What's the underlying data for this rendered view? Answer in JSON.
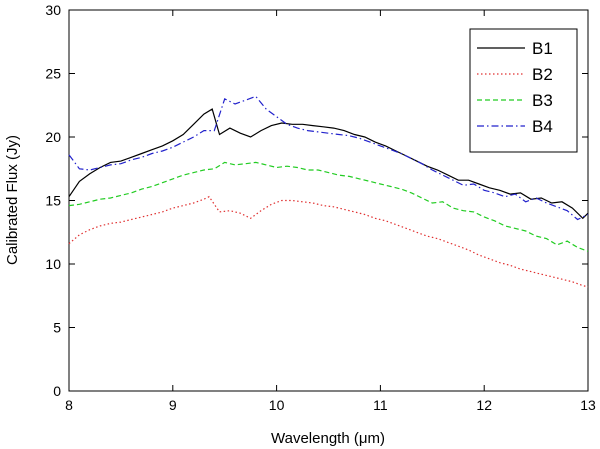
{
  "chart_data": {
    "type": "line",
    "title": "",
    "xlabel": "Wavelength (μm)",
    "ylabel": "Calibrated Flux (Jy)",
    "xlim": [
      8,
      13
    ],
    "ylim": [
      0,
      30
    ],
    "xticks": [
      8,
      9,
      10,
      11,
      12,
      13
    ],
    "yticks": [
      0,
      5,
      10,
      15,
      20,
      25,
      30
    ],
    "grid": false,
    "legend": "top-right",
    "series": [
      {
        "name": "B1",
        "color": "#000000",
        "dash": "solid",
        "x": [
          8.0,
          8.1,
          8.2,
          8.3,
          8.4,
          8.5,
          8.6,
          8.7,
          8.8,
          8.9,
          9.0,
          9.1,
          9.2,
          9.3,
          9.38,
          9.45,
          9.55,
          9.65,
          9.75,
          9.85,
          9.95,
          10.05,
          10.15,
          10.25,
          10.35,
          10.45,
          10.55,
          10.65,
          10.75,
          10.85,
          10.95,
          11.05,
          11.15,
          11.25,
          11.35,
          11.45,
          11.55,
          11.65,
          11.75,
          11.85,
          11.95,
          12.05,
          12.15,
          12.25,
          12.35,
          12.45,
          12.55,
          12.65,
          12.75,
          12.85,
          12.95,
          13.0
        ],
        "y": [
          15.3,
          16.5,
          17.1,
          17.6,
          18.0,
          18.1,
          18.4,
          18.7,
          19.0,
          19.3,
          19.7,
          20.2,
          21.0,
          21.8,
          22.2,
          20.2,
          20.7,
          20.3,
          20.0,
          20.5,
          20.9,
          21.1,
          21.0,
          21.0,
          20.9,
          20.8,
          20.7,
          20.5,
          20.2,
          20.0,
          19.6,
          19.3,
          18.9,
          18.5,
          18.1,
          17.7,
          17.4,
          17.0,
          16.6,
          16.6,
          16.3,
          16.0,
          15.8,
          15.5,
          15.6,
          15.1,
          15.2,
          14.8,
          14.9,
          14.4,
          13.6,
          14.0
        ]
      },
      {
        "name": "B2",
        "color": "#e03030",
        "dash": "dotted",
        "x": [
          8.0,
          8.1,
          8.2,
          8.3,
          8.4,
          8.5,
          8.6,
          8.7,
          8.8,
          8.9,
          9.0,
          9.1,
          9.2,
          9.3,
          9.35,
          9.45,
          9.55,
          9.65,
          9.75,
          9.85,
          9.95,
          10.05,
          10.15,
          10.25,
          10.35,
          10.45,
          10.55,
          10.65,
          10.75,
          10.85,
          10.95,
          11.05,
          11.15,
          11.25,
          11.35,
          11.45,
          11.55,
          11.65,
          11.75,
          11.85,
          11.95,
          12.05,
          12.15,
          12.25,
          12.35,
          12.45,
          12.55,
          12.65,
          12.75,
          12.85,
          12.95,
          13.0
        ],
        "y": [
          11.6,
          12.3,
          12.7,
          13.0,
          13.2,
          13.3,
          13.5,
          13.7,
          13.9,
          14.1,
          14.4,
          14.6,
          14.8,
          15.1,
          15.3,
          14.1,
          14.2,
          14.0,
          13.6,
          14.2,
          14.7,
          15.0,
          15.0,
          14.9,
          14.8,
          14.6,
          14.5,
          14.3,
          14.1,
          13.9,
          13.6,
          13.4,
          13.1,
          12.8,
          12.5,
          12.2,
          12.0,
          11.7,
          11.4,
          11.1,
          10.7,
          10.4,
          10.1,
          9.9,
          9.6,
          9.4,
          9.2,
          9.0,
          8.8,
          8.6,
          8.3,
          8.2
        ]
      },
      {
        "name": "B3",
        "color": "#22cc22",
        "dash": "dashed",
        "x": [
          8.0,
          8.1,
          8.2,
          8.3,
          8.4,
          8.5,
          8.6,
          8.7,
          8.8,
          8.9,
          9.0,
          9.1,
          9.2,
          9.3,
          9.4,
          9.5,
          9.6,
          9.7,
          9.8,
          9.9,
          10.0,
          10.1,
          10.2,
          10.3,
          10.4,
          10.5,
          10.6,
          10.7,
          10.8,
          10.9,
          11.0,
          11.1,
          11.2,
          11.3,
          11.4,
          11.5,
          11.6,
          11.7,
          11.8,
          11.9,
          12.0,
          12.1,
          12.2,
          12.3,
          12.4,
          12.5,
          12.6,
          12.7,
          12.8,
          12.9,
          13.0
        ],
        "y": [
          14.6,
          14.7,
          14.9,
          15.1,
          15.2,
          15.4,
          15.6,
          15.9,
          16.1,
          16.4,
          16.7,
          17.0,
          17.2,
          17.4,
          17.5,
          18.0,
          17.8,
          17.9,
          18.0,
          17.8,
          17.6,
          17.7,
          17.6,
          17.4,
          17.4,
          17.2,
          17.0,
          16.9,
          16.7,
          16.5,
          16.3,
          16.1,
          15.9,
          15.6,
          15.2,
          14.8,
          14.9,
          14.4,
          14.2,
          14.1,
          13.7,
          13.4,
          13.0,
          12.8,
          12.6,
          12.2,
          12.0,
          11.5,
          11.8,
          11.3,
          11.0
        ]
      },
      {
        "name": "B4",
        "color": "#2222cc",
        "dash": "dashdot",
        "x": [
          8.0,
          8.1,
          8.2,
          8.3,
          8.4,
          8.5,
          8.6,
          8.7,
          8.8,
          8.9,
          9.0,
          9.1,
          9.2,
          9.3,
          9.4,
          9.5,
          9.6,
          9.7,
          9.8,
          9.9,
          10.0,
          10.1,
          10.2,
          10.3,
          10.4,
          10.5,
          10.6,
          10.7,
          10.8,
          10.9,
          11.0,
          11.1,
          11.2,
          11.3,
          11.4,
          11.5,
          11.6,
          11.7,
          11.8,
          11.9,
          12.0,
          12.1,
          12.2,
          12.3,
          12.4,
          12.5,
          12.6,
          12.7,
          12.8,
          12.9,
          13.0
        ],
        "y": [
          18.6,
          17.5,
          17.4,
          17.6,
          17.8,
          17.9,
          18.2,
          18.4,
          18.7,
          18.9,
          19.2,
          19.6,
          20.0,
          20.5,
          20.5,
          23.0,
          22.6,
          22.9,
          23.2,
          22.2,
          21.6,
          21.0,
          20.7,
          20.5,
          20.4,
          20.3,
          20.2,
          20.1,
          19.9,
          19.6,
          19.3,
          19.0,
          18.7,
          18.3,
          17.9,
          17.4,
          17.0,
          16.6,
          16.2,
          16.3,
          15.8,
          15.6,
          15.3,
          15.5,
          14.9,
          15.2,
          14.8,
          14.5,
          14.2,
          13.5,
          13.9
        ]
      }
    ]
  }
}
